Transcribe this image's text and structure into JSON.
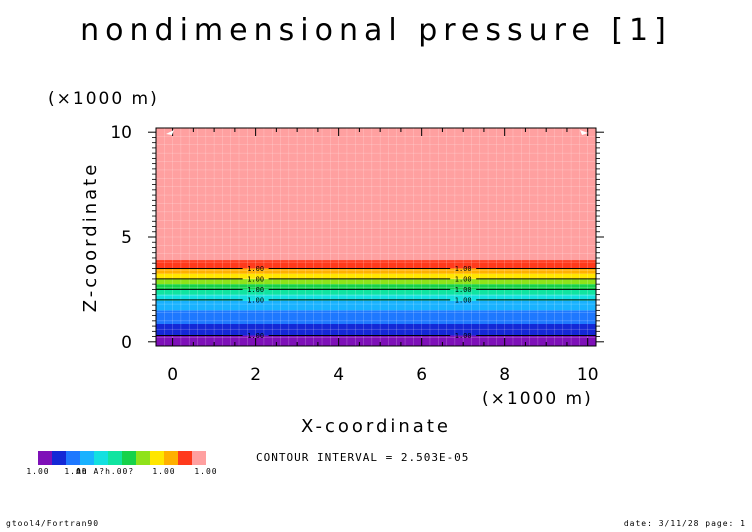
{
  "chart_data": {
    "type": "heatmap",
    "title": "nondimensional pressure [1]",
    "xlabel": "X-coordinate",
    "ylabel": "Z-coordinate",
    "x_unit": "(×1000 m)",
    "y_unit": "(×1000 m)",
    "xlim": [
      -0.4,
      10.2
    ],
    "ylim": [
      -0.2,
      10.2
    ],
    "x_ticks": [
      0,
      2,
      4,
      6,
      8,
      10
    ],
    "y_ticks": [
      0,
      5,
      10
    ],
    "grid": true,
    "bands": [
      {
        "z0": -0.2,
        "z1": 0.3,
        "color": "#7e10b8"
      },
      {
        "z0": 0.3,
        "z1": 0.85,
        "color": "#1428d6"
      },
      {
        "z0": 0.85,
        "z1": 1.5,
        "color": "#1e78ff"
      },
      {
        "z0": 1.5,
        "z1": 1.95,
        "color": "#19b2ff"
      },
      {
        "z0": 1.95,
        "z1": 2.25,
        "color": "#13e0e0"
      },
      {
        "z0": 2.25,
        "z1": 2.5,
        "color": "#10e4a0"
      },
      {
        "z0": 2.5,
        "z1": 2.75,
        "color": "#16d24a"
      },
      {
        "z0": 2.75,
        "z1": 3.0,
        "color": "#8fe21a"
      },
      {
        "z0": 3.0,
        "z1": 3.25,
        "color": "#ffe600"
      },
      {
        "z0": 3.25,
        "z1": 3.5,
        "color": "#ffb000"
      },
      {
        "z0": 3.5,
        "z1": 3.9,
        "color": "#ff3a1c"
      },
      {
        "z0": 3.9,
        "z1": 10.2,
        "color": "#ffa0a0"
      }
    ],
    "contours": [
      {
        "z": 0.3,
        "label": "1.00"
      },
      {
        "z": 2.0,
        "label": "1.00"
      },
      {
        "z": 2.5,
        "label": "1.00"
      },
      {
        "z": 3.0,
        "label": "1.00"
      },
      {
        "z": 3.5,
        "label": "1.00"
      }
    ],
    "contour_label_x": [
      2,
      7
    ],
    "contour_interval": "CONTOUR INTERVAL = 2.503E-05",
    "colorbar": {
      "colors": [
        "#7e10b8",
        "#1428d6",
        "#1e78ff",
        "#19b2ff",
        "#13e0e0",
        "#10e4a0",
        "#16d24a",
        "#8fe21a",
        "#ffe600",
        "#ffb000",
        "#ff3a1c",
        "#ffa0a0"
      ],
      "labels": [
        "1.00",
        "1.00",
        "1.00",
        "1.00",
        "1.00",
        "1.00",
        "1.00"
      ],
      "overlap_text": "Ah A?h.00?"
    }
  },
  "footer": {
    "left": "gtool4/Fortran90",
    "right": "date: 3/11/28 page: 1"
  }
}
